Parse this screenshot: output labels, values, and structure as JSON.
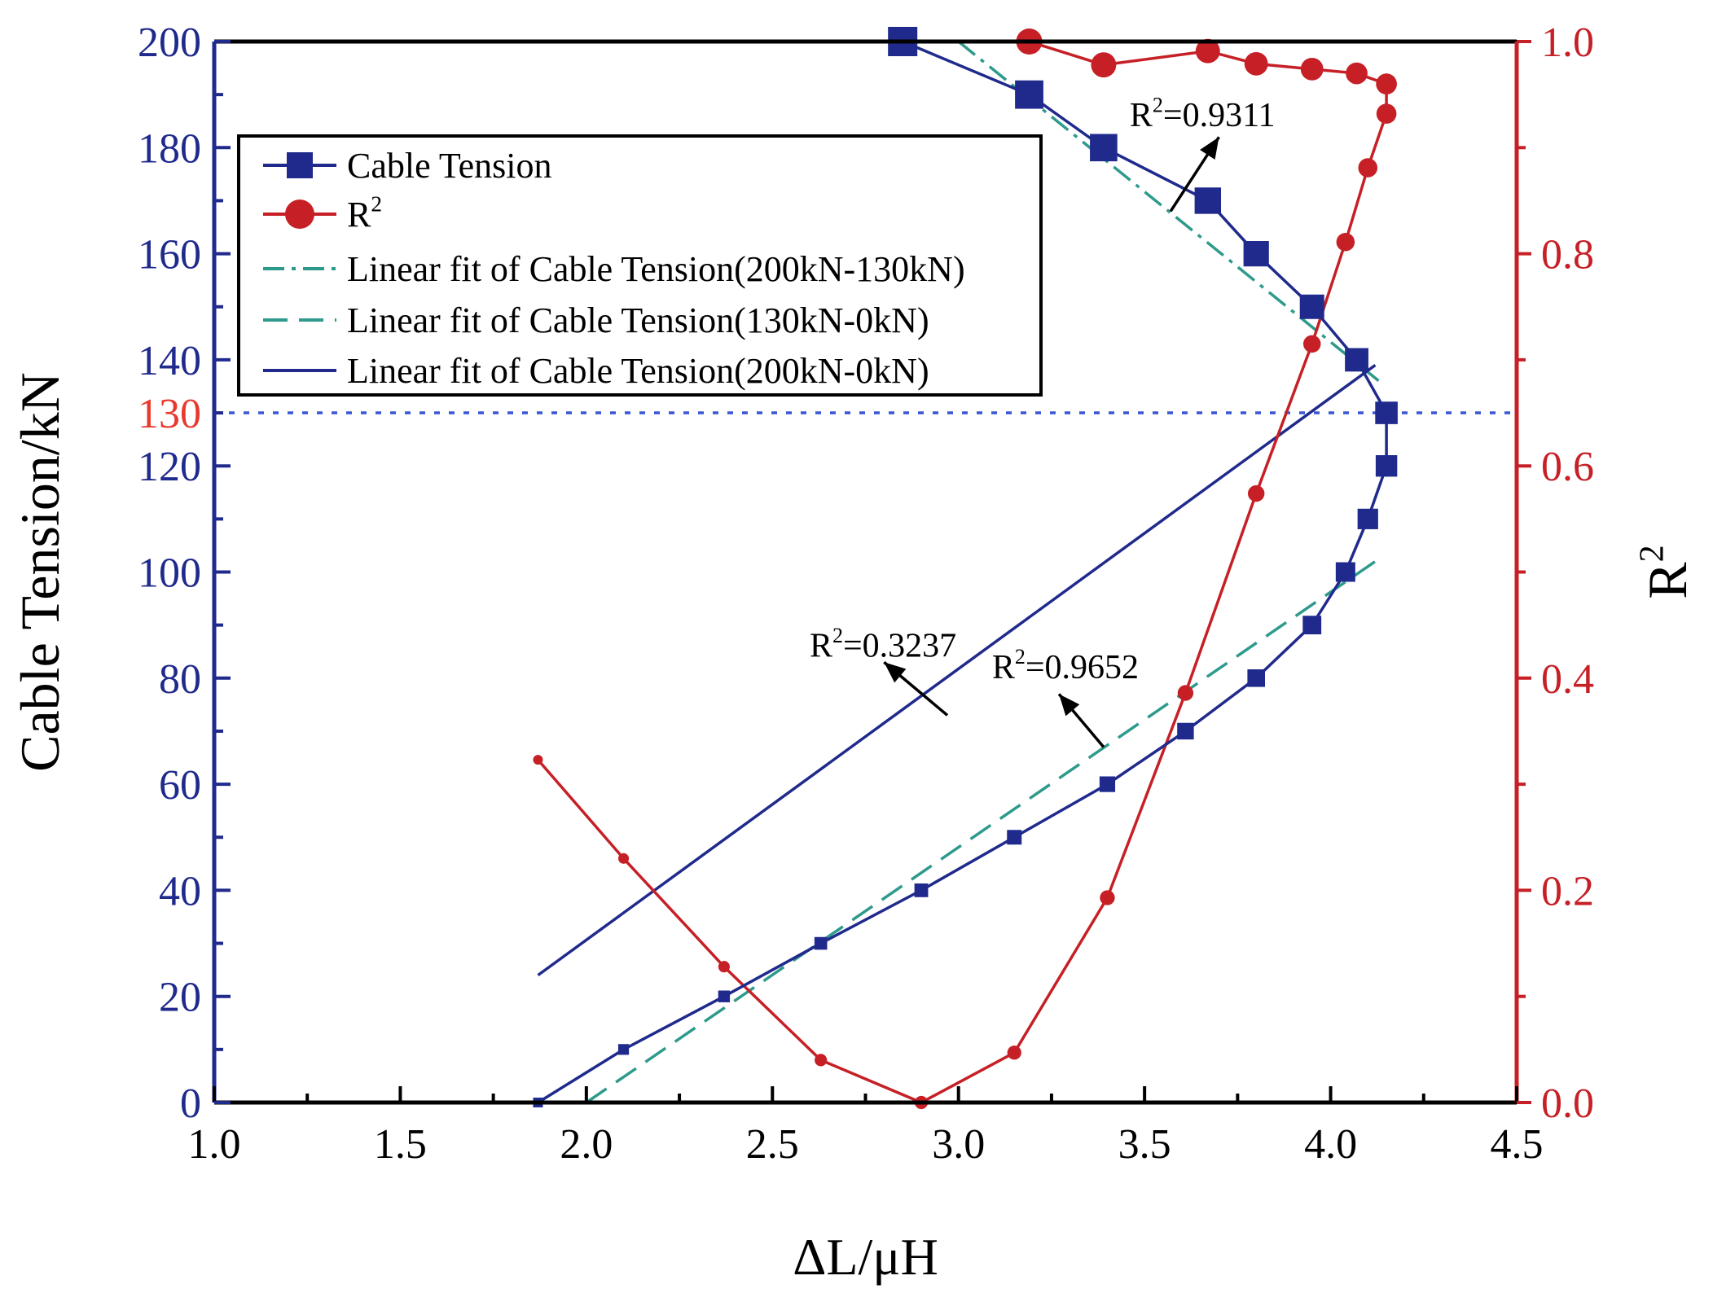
{
  "chart_data": {
    "type": "line",
    "xlabel": "ΔL/μH",
    "ylabel": "Cable Tension/kN",
    "y2label_base": "R",
    "y2label_sup": "2",
    "xlim": [
      1.0,
      4.5
    ],
    "ylim": [
      0,
      200
    ],
    "y2lim": [
      0.0,
      1.0
    ],
    "x_ticks": [
      "1.0",
      "1.5",
      "2.0",
      "2.5",
      "3.0",
      "3.5",
      "4.0",
      "4.5"
    ],
    "y_ticks": [
      "0",
      "20",
      "40",
      "60",
      "80",
      "100",
      "120",
      "140",
      "160",
      "180",
      "200"
    ],
    "y2_ticks": [
      "0.0",
      "0.2",
      "0.4",
      "0.6",
      "0.8",
      "1.0"
    ],
    "threshold": {
      "label": "130",
      "value": 130
    },
    "series": [
      {
        "name": "Cable Tension",
        "axis": "left",
        "x": [
          1.87,
          2.1,
          2.37,
          2.63,
          2.9,
          3.15,
          3.4,
          3.61,
          3.8,
          3.95,
          4.04,
          4.1,
          4.15,
          4.15,
          4.07,
          3.95,
          3.8,
          3.67,
          3.39,
          3.19,
          2.85
        ],
        "y": [
          0,
          10,
          20,
          30,
          40,
          50,
          60,
          70,
          80,
          90,
          100,
          110,
          120,
          130,
          140,
          150,
          160,
          170,
          180,
          190,
          200
        ]
      },
      {
        "name": "R",
        "name_sup": "2",
        "axis": "right",
        "x": [
          1.87,
          2.1,
          2.37,
          2.63,
          2.9,
          3.15,
          3.4,
          3.61,
          3.8,
          3.95,
          4.04,
          4.1,
          4.15,
          4.15,
          4.07,
          3.95,
          3.8,
          3.67,
          3.39,
          3.19
        ],
        "y": [
          0.323,
          0.23,
          0.128,
          0.04,
          0.0,
          0.047,
          0.193,
          0.386,
          0.574,
          0.715,
          0.811,
          0.881,
          0.932,
          0.96,
          0.97,
          0.974,
          0.979,
          0.991,
          0.978,
          1.0
        ]
      },
      {
        "name": "Linear fit of Cable Tension(200kN-130kN)",
        "axis": "left",
        "x": [
          3.0,
          4.13
        ],
        "y": [
          200,
          136
        ]
      },
      {
        "name": "Linear fit of Cable Tension(130kN-0kN)",
        "axis": "left",
        "x": [
          2.0,
          4.12
        ],
        "y": [
          0,
          102
        ]
      },
      {
        "name": "Linear fit of Cable Tension(200kN-0kN)",
        "axis": "left",
        "x": [
          1.87,
          4.12
        ],
        "y": [
          24,
          139
        ]
      }
    ],
    "annotations": [
      {
        "text_base": "R",
        "text_sup": "2",
        "text_value": "=0.9311",
        "text_x": 3.46,
        "text_y": 184,
        "arrow_from": [
          3.57,
          168
        ],
        "arrow_to": [
          3.7,
          182
        ]
      },
      {
        "text_base": "R",
        "text_sup": "2",
        "text_value": "=0.3237",
        "text_x": 2.6,
        "text_y": 84,
        "arrow_from": [
          2.97,
          73
        ],
        "arrow_to": [
          2.8,
          83
        ]
      },
      {
        "text_base": "R",
        "text_sup": "2",
        "text_value": "=0.9652",
        "text_x": 3.09,
        "text_y": 80,
        "arrow_from": [
          3.39,
          67
        ],
        "arrow_to": [
          3.27,
          77
        ]
      }
    ],
    "legend_position": "top-left",
    "colors": {
      "tension": "#1f2a8c",
      "r2": "#c62026",
      "fit_teal": "#2e9a8c",
      "threshold_line": "#3a55d6",
      "threshold_label": "#e8392f",
      "axis_black": "#000000"
    }
  }
}
